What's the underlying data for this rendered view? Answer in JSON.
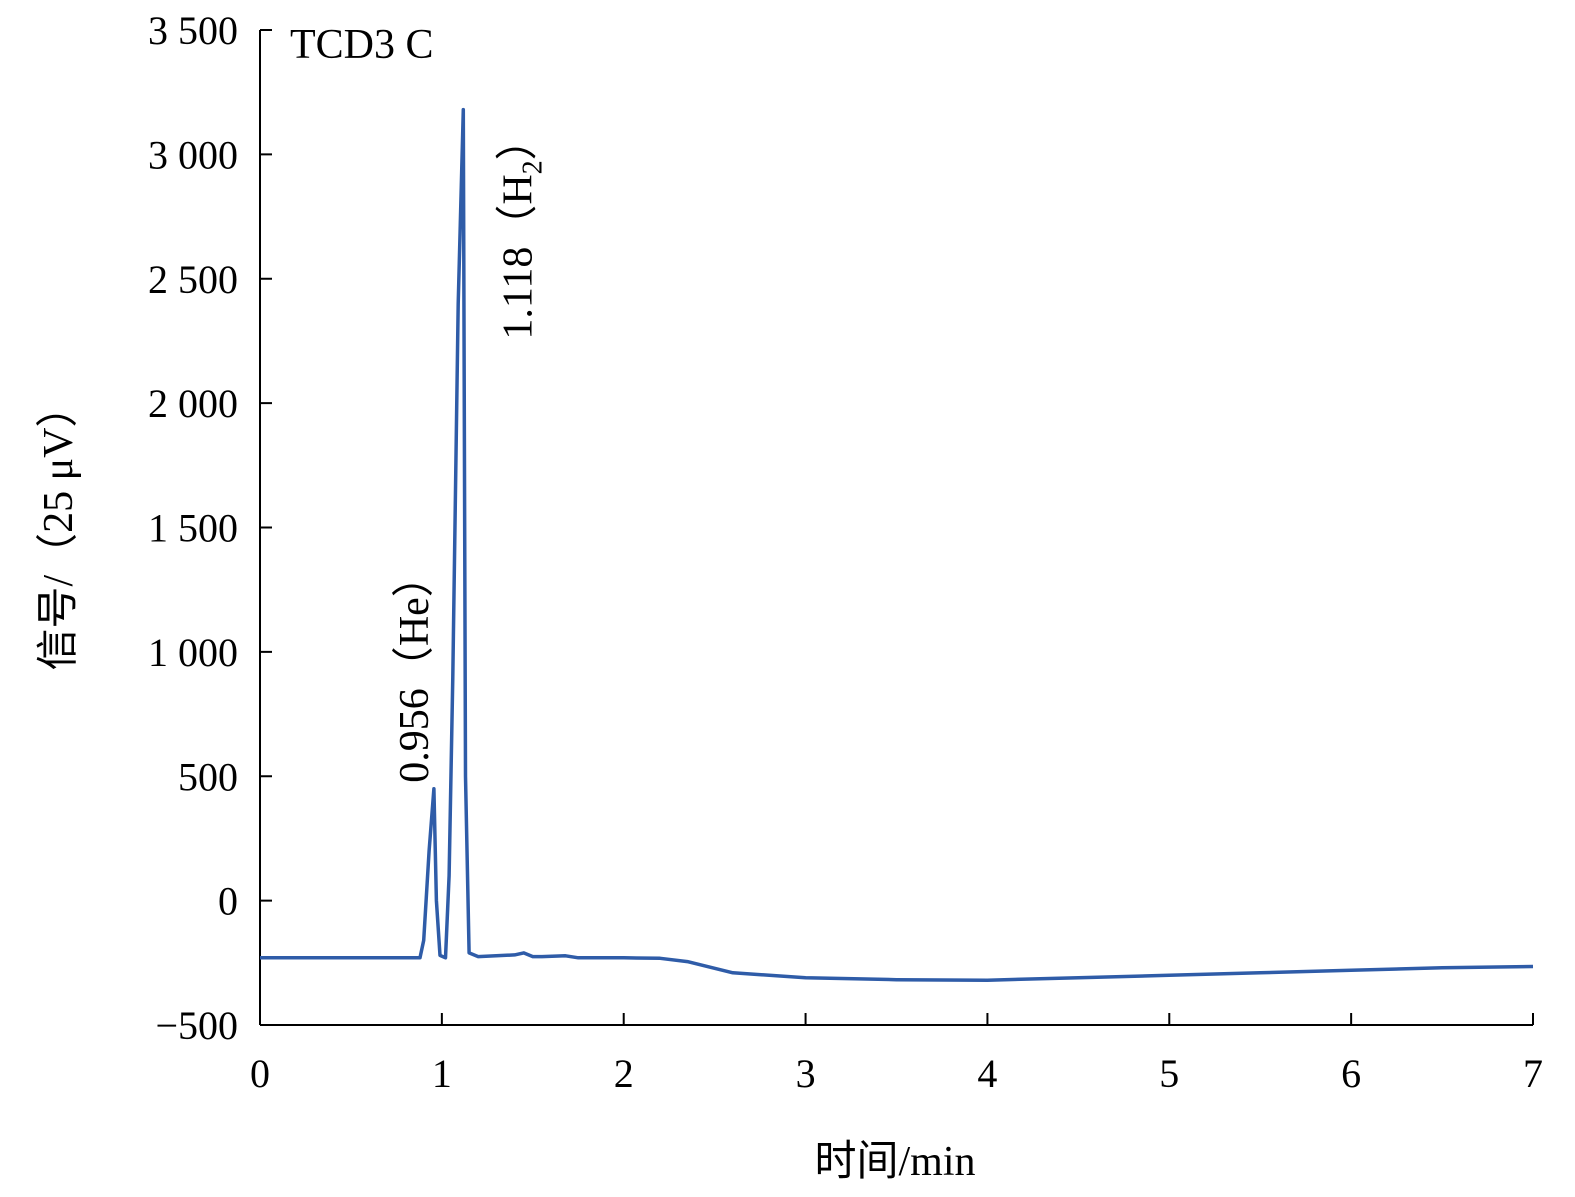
{
  "chart_data": {
    "type": "line",
    "title": "TCD3 C",
    "xlabel": "时间/min",
    "ylabel": "信号/（25 μV）",
    "xlim": [
      0,
      7
    ],
    "ylim": [
      -500,
      3500
    ],
    "x_ticks": [
      0,
      1,
      2,
      3,
      4,
      5,
      6,
      7
    ],
    "x_tick_labels": [
      "0",
      "1",
      "2",
      "3",
      "4",
      "5",
      "6",
      "7"
    ],
    "y_ticks": [
      -500,
      0,
      500,
      1000,
      1500,
      2000,
      2500,
      3000,
      3500
    ],
    "y_tick_labels": [
      "−500",
      "0",
      "500",
      "1 000",
      "1 500",
      "2 000",
      "2 500",
      "3 000",
      "3 500"
    ],
    "grid": false,
    "line_color": "#2f5ca8",
    "series": [
      {
        "x": [
          0,
          0.5,
          0.88,
          0.9,
          0.93,
          0.956,
          0.97,
          0.99,
          1.02,
          1.04,
          1.06,
          1.09,
          1.118,
          1.13,
          1.15,
          1.2,
          1.4,
          1.45,
          1.5,
          1.55,
          1.68,
          1.75,
          2.0,
          2.2,
          2.35,
          2.6,
          3.0,
          3.5,
          4.0,
          4.5,
          5.0,
          5.5,
          6.0,
          6.5,
          7.0
        ],
        "y": [
          -230,
          -230,
          -230,
          -160,
          200,
          450,
          0,
          -220,
          -230,
          100,
          900,
          2400,
          3180,
          500,
          -210,
          -225,
          -218,
          -210,
          -225,
          -225,
          -222,
          -230,
          -230,
          -232,
          -245,
          -290,
          -310,
          -318,
          -320,
          -310,
          -300,
          -290,
          -280,
          -270,
          -265
        ]
      }
    ],
    "annotations": [
      {
        "text": "0.956（He）",
        "x": 0.956,
        "y": 450
      },
      {
        "text_main": "1.118（H",
        "text_sub": "2",
        "text_end": "）",
        "x": 1.118,
        "y": 3180
      }
    ]
  }
}
